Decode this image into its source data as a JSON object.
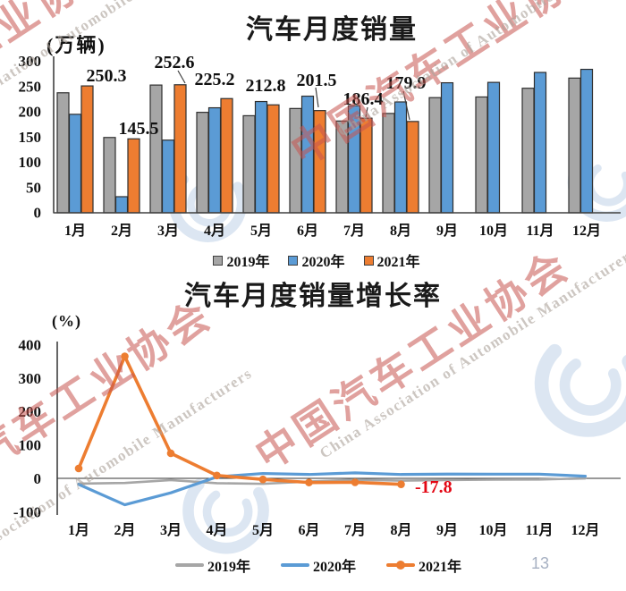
{
  "page": {
    "number": "13",
    "background": "#ffffff"
  },
  "watermark": {
    "cn_text": "中国汽车工业协会",
    "en_text": "China Association of Automobile Manufacturers",
    "cn_color": "#c6544f",
    "en_color": "#aca39b",
    "logo_color": "#d9e4f1"
  },
  "chart_data": [
    {
      "type": "bar",
      "title": "汽车月度销量",
      "unit_label": "(万辆)",
      "categories": [
        "1月",
        "2月",
        "3月",
        "4月",
        "5月",
        "6月",
        "7月",
        "8月",
        "9月",
        "10月",
        "11月",
        "12月"
      ],
      "series": [
        {
          "name": "2019年",
          "color": "#a6a6a6",
          "values": [
            236.7,
            148.2,
            252.0,
            198.0,
            191.3,
            205.6,
            180.8,
            195.8,
            227.1,
            228.4,
            245.7,
            265.8
          ]
        },
        {
          "name": "2020年",
          "color": "#5b9bd5",
          "values": [
            194.1,
            31.0,
            143.0,
            207.0,
            219.4,
            230.0,
            211.2,
            218.6,
            256.5,
            257.3,
            277.0,
            283.1
          ]
        },
        {
          "name": "2021年",
          "color": "#ed7d31",
          "values": [
            250.3,
            145.5,
            252.6,
            225.2,
            212.8,
            201.5,
            186.4,
            179.9
          ],
          "data_labels": [
            "250.3",
            "145.5",
            "252.6",
            "225.2",
            "212.8",
            "201.5",
            "186.4",
            "179.9"
          ]
        }
      ],
      "ylim": [
        0,
        300
      ],
      "yticks": [
        0,
        50,
        100,
        150,
        200,
        250,
        300
      ],
      "grid": false,
      "legend_position": "bottom"
    },
    {
      "type": "line",
      "title": "汽车月度销量增长率",
      "unit_label": "(%)",
      "categories": [
        "1月",
        "2月",
        "3月",
        "4月",
        "5月",
        "6月",
        "7月",
        "8月",
        "9月",
        "10月",
        "11月",
        "12月"
      ],
      "series": [
        {
          "name": "2019年",
          "color": "#a6a6a6",
          "marker": false,
          "values": [
            -15.8,
            -13.8,
            -5.2,
            -14.6,
            -16.4,
            -9.6,
            -4.3,
            -6.9,
            -5.2,
            -4.0,
            -3.6,
            -0.1
          ]
        },
        {
          "name": "2020年",
          "color": "#5b9bd5",
          "marker": false,
          "values": [
            -18.0,
            -79.1,
            -43.3,
            4.4,
            14.5,
            11.6,
            16.4,
            11.6,
            12.8,
            12.5,
            12.6,
            6.4
          ]
        },
        {
          "name": "2021年",
          "color": "#ed7d31",
          "marker": true,
          "values": [
            29.5,
            364.8,
            74.9,
            8.6,
            -3.1,
            -12.4,
            -11.9,
            -17.8
          ]
        }
      ],
      "ylim": [
        -100,
        400
      ],
      "yticks": [
        -100,
        0,
        100,
        200,
        300,
        400
      ],
      "grid": false,
      "legend_position": "bottom",
      "annotation": {
        "text": "-17.8",
        "color": "#e30613"
      }
    }
  ]
}
